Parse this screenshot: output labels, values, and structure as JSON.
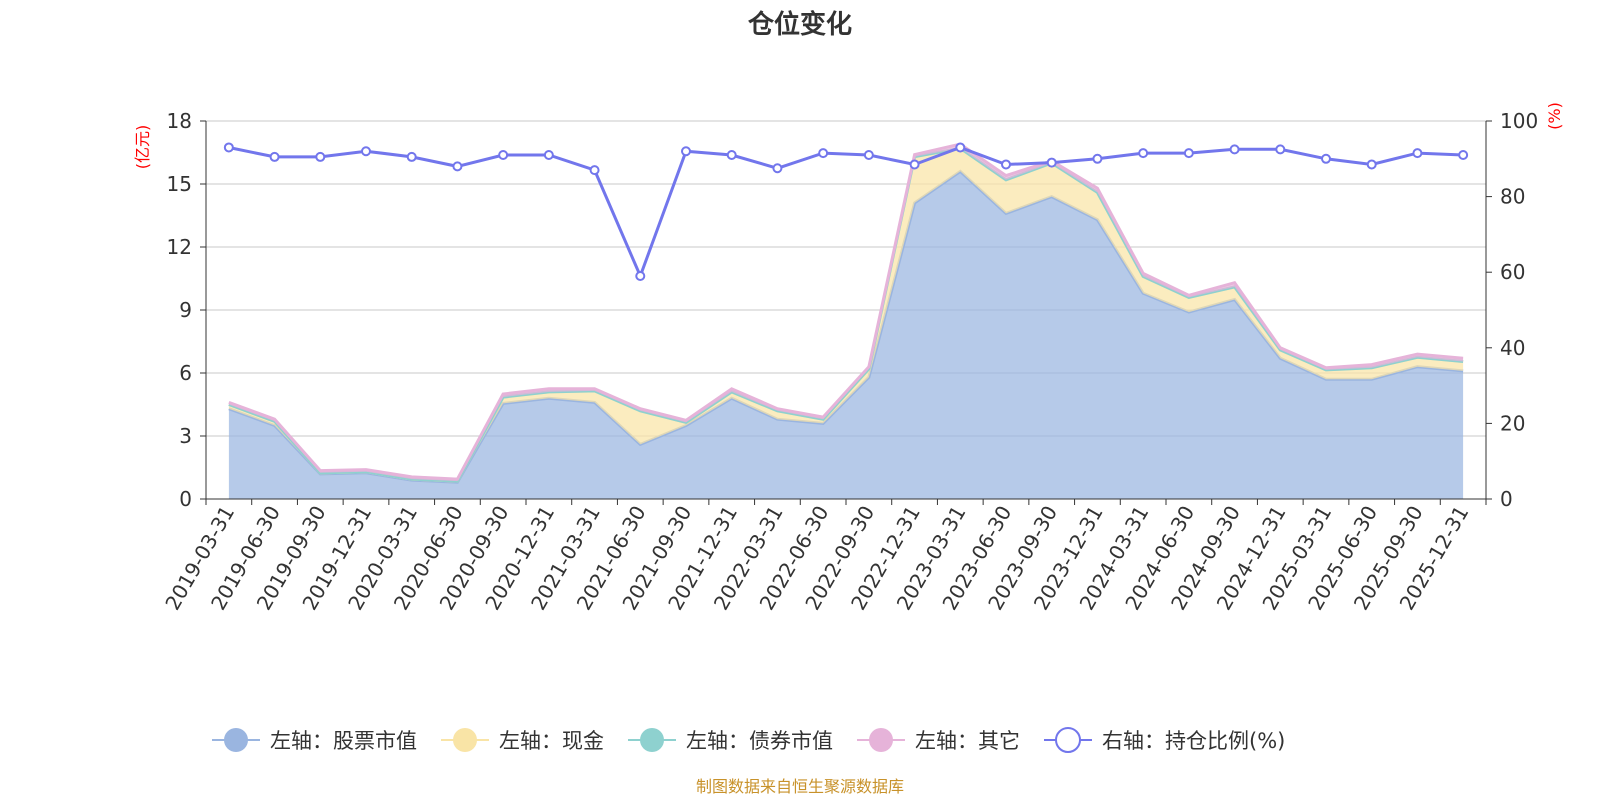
{
  "chart_data": {
    "type": "area",
    "title": "仓位变化",
    "left_unit": "(亿元)",
    "right_unit": "(%)",
    "categories": [
      "2019-03-31",
      "2019-06-30",
      "2019-09-30",
      "2019-12-31",
      "2020-03-31",
      "2020-06-30",
      "2020-09-30",
      "2020-12-31",
      "2021-03-31",
      "2021-06-30",
      "2021-09-30",
      "2021-12-31",
      "2022-03-31",
      "2022-06-30",
      "2022-09-30",
      "2022-12-31",
      "2023-03-31",
      "2023-06-30",
      "2023-09-30",
      "2023-12-31",
      "2024-03-31",
      "2024-06-30",
      "2024-09-30",
      "2024-12-31",
      "2025-03-31",
      "2025-06-30",
      "2025-09-30",
      "2025-12-31"
    ],
    "left_ylim": [
      0,
      18
    ],
    "left_ticks": [
      "0",
      "3",
      "6",
      "9",
      "12",
      "15",
      "18"
    ],
    "right_ylim": [
      0,
      100
    ],
    "right_ticks": [
      "0",
      "20",
      "40",
      "60",
      "80",
      "100"
    ],
    "series": [
      {
        "name": "左轴：股票市值",
        "axis": "left",
        "kind": "stacked-area",
        "color": "#9ab5e0",
        "values": [
          4.3,
          3.5,
          1.2,
          1.25,
          0.9,
          0.8,
          4.55,
          4.8,
          4.6,
          2.6,
          3.5,
          4.8,
          3.8,
          3.6,
          5.8,
          14.1,
          15.6,
          13.6,
          14.4,
          13.3,
          9.8,
          8.9,
          9.5,
          6.7,
          5.7,
          5.7,
          6.3,
          6.1
        ]
      },
      {
        "name": "左轴：现金",
        "axis": "left",
        "kind": "stacked-area",
        "color": "#f9e4a6",
        "values": [
          0.2,
          0.2,
          0.05,
          0.05,
          0.05,
          0.05,
          0.3,
          0.3,
          0.55,
          1.6,
          0.15,
          0.3,
          0.4,
          0.2,
          0.4,
          2.2,
          1.1,
          1.6,
          1.6,
          1.3,
          0.8,
          0.7,
          0.6,
          0.4,
          0.45,
          0.55,
          0.45,
          0.45
        ]
      },
      {
        "name": "左轴：债券市值",
        "axis": "left",
        "kind": "stacked-area",
        "color": "#8ed1cf",
        "values": [
          0,
          0,
          0,
          0,
          0,
          0,
          0,
          0,
          0,
          0,
          0,
          0,
          0,
          0,
          0,
          0,
          0,
          0,
          0,
          0,
          0,
          0,
          0,
          0,
          0,
          0,
          0,
          0
        ]
      },
      {
        "name": "左轴：其它",
        "axis": "left",
        "kind": "stacked-area",
        "color": "#e6b3d9",
        "values": [
          0.1,
          0.1,
          0.1,
          0.1,
          0.1,
          0.1,
          0.15,
          0.15,
          0.1,
          0.1,
          0.1,
          0.15,
          0.1,
          0.1,
          0.1,
          0.1,
          0.2,
          0.2,
          0.1,
          0.2,
          0.15,
          0.1,
          0.2,
          0.1,
          0.1,
          0.15,
          0.15,
          0.15
        ]
      },
      {
        "name": "右轴：持仓比例(%)",
        "axis": "right",
        "kind": "line",
        "color": "#7276ec",
        "values": [
          93,
          90.5,
          90.5,
          92,
          90.5,
          88,
          91,
          91,
          87,
          59,
          92,
          91,
          87.5,
          91.5,
          91,
          88.5,
          93,
          88.5,
          89,
          90,
          91.5,
          91.5,
          92.5,
          92.5,
          90,
          88.5,
          91.5,
          91
        ]
      }
    ],
    "legend_position": "bottom",
    "grid": true
  },
  "footer": {
    "source": "制图数据来自恒生聚源数据库"
  }
}
